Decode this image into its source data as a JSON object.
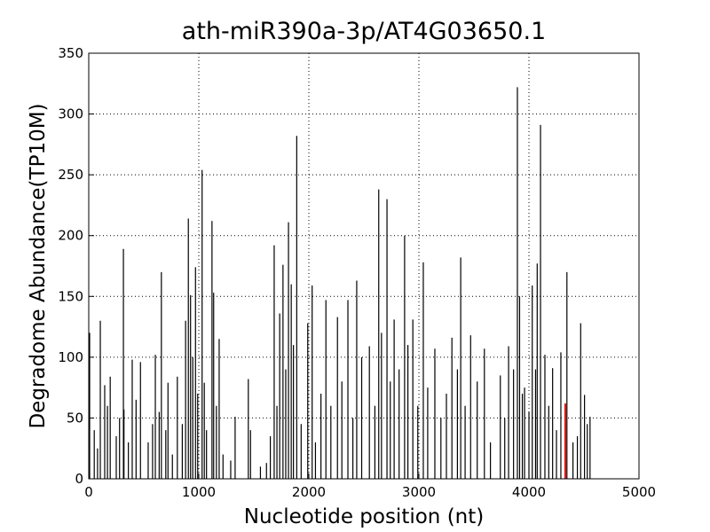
{
  "chart_data": {
    "type": "stem",
    "title": "ath-miR390a-3p/AT4G03650.1",
    "xlabel": "Nucleotide position (nt)",
    "ylabel": "Degradome Abundance(TP10M)",
    "xlim": [
      0,
      5000
    ],
    "ylim": [
      0,
      350
    ],
    "xticks": [
      0,
      1000,
      2000,
      3000,
      4000,
      5000
    ],
    "yticks": [
      0,
      50,
      100,
      150,
      200,
      250,
      300,
      350
    ],
    "grid": true,
    "series": [
      {
        "color": "#000000",
        "x": [
          8,
          105,
          145,
          195,
          315,
          320,
          395,
          470,
          605,
          660,
          720,
          805,
          905,
          925,
          970,
          1030,
          1050,
          1120,
          1135,
          1185,
          1330,
          1450,
          1615,
          1685,
          1735,
          1765,
          1815,
          1840,
          1890,
          1990,
          2030,
          2155,
          2260,
          2355,
          2435,
          2550,
          2635,
          2710,
          2775,
          2870,
          2945,
          3040,
          3145,
          3300,
          3380,
          3470,
          3595,
          3740,
          3815,
          3895,
          3915,
          3960,
          4030,
          4075,
          4105,
          4145,
          4215,
          4290,
          4345,
          4470,
          4505,
          4555,
          50,
          80,
          170,
          250,
          280,
          360,
          430,
          540,
          580,
          640,
          700,
          760,
          850,
          880,
          945,
          990,
          1070,
          1160,
          1220,
          1290,
          1470,
          1560,
          1650,
          1710,
          1790,
          1860,
          1930,
          2060,
          2110,
          2200,
          2300,
          2400,
          2480,
          2600,
          2660,
          2740,
          2820,
          2900,
          2990,
          3080,
          3200,
          3250,
          3350,
          3420,
          3530,
          3650,
          3780,
          3860,
          3940,
          4000,
          4060,
          4180,
          4250,
          4400,
          4440,
          4530
        ],
        "values": [
          120,
          130,
          77,
          84,
          189,
          57,
          98,
          96,
          102,
          170,
          79,
          84,
          214,
          151,
          174,
          254,
          79,
          212,
          153,
          115,
          51,
          82,
          13,
          192,
          136,
          176,
          211,
          160,
          282,
          128,
          159,
          147,
          133,
          147,
          163,
          109,
          238,
          230,
          131,
          200,
          131,
          178,
          107,
          116,
          182,
          118,
          107,
          85,
          109,
          322,
          150,
          75,
          159,
          177,
          291,
          102,
          91,
          104,
          170,
          128,
          69,
          51,
          40,
          25,
          60,
          35,
          50,
          30,
          65,
          30,
          45,
          55,
          40,
          20,
          45,
          130,
          100,
          70,
          40,
          60,
          20,
          15,
          40,
          10,
          35,
          60,
          90,
          110,
          45,
          30,
          70,
          60,
          80,
          50,
          100,
          60,
          120,
          80,
          90,
          110,
          60,
          75,
          50,
          70,
          90,
          60,
          80,
          30,
          50,
          90,
          70,
          55,
          90,
          60,
          40,
          30,
          35,
          45
        ]
      },
      {
        "color": "#ff0000",
        "x": [
          4330
        ],
        "values": [
          62
        ]
      }
    ]
  }
}
